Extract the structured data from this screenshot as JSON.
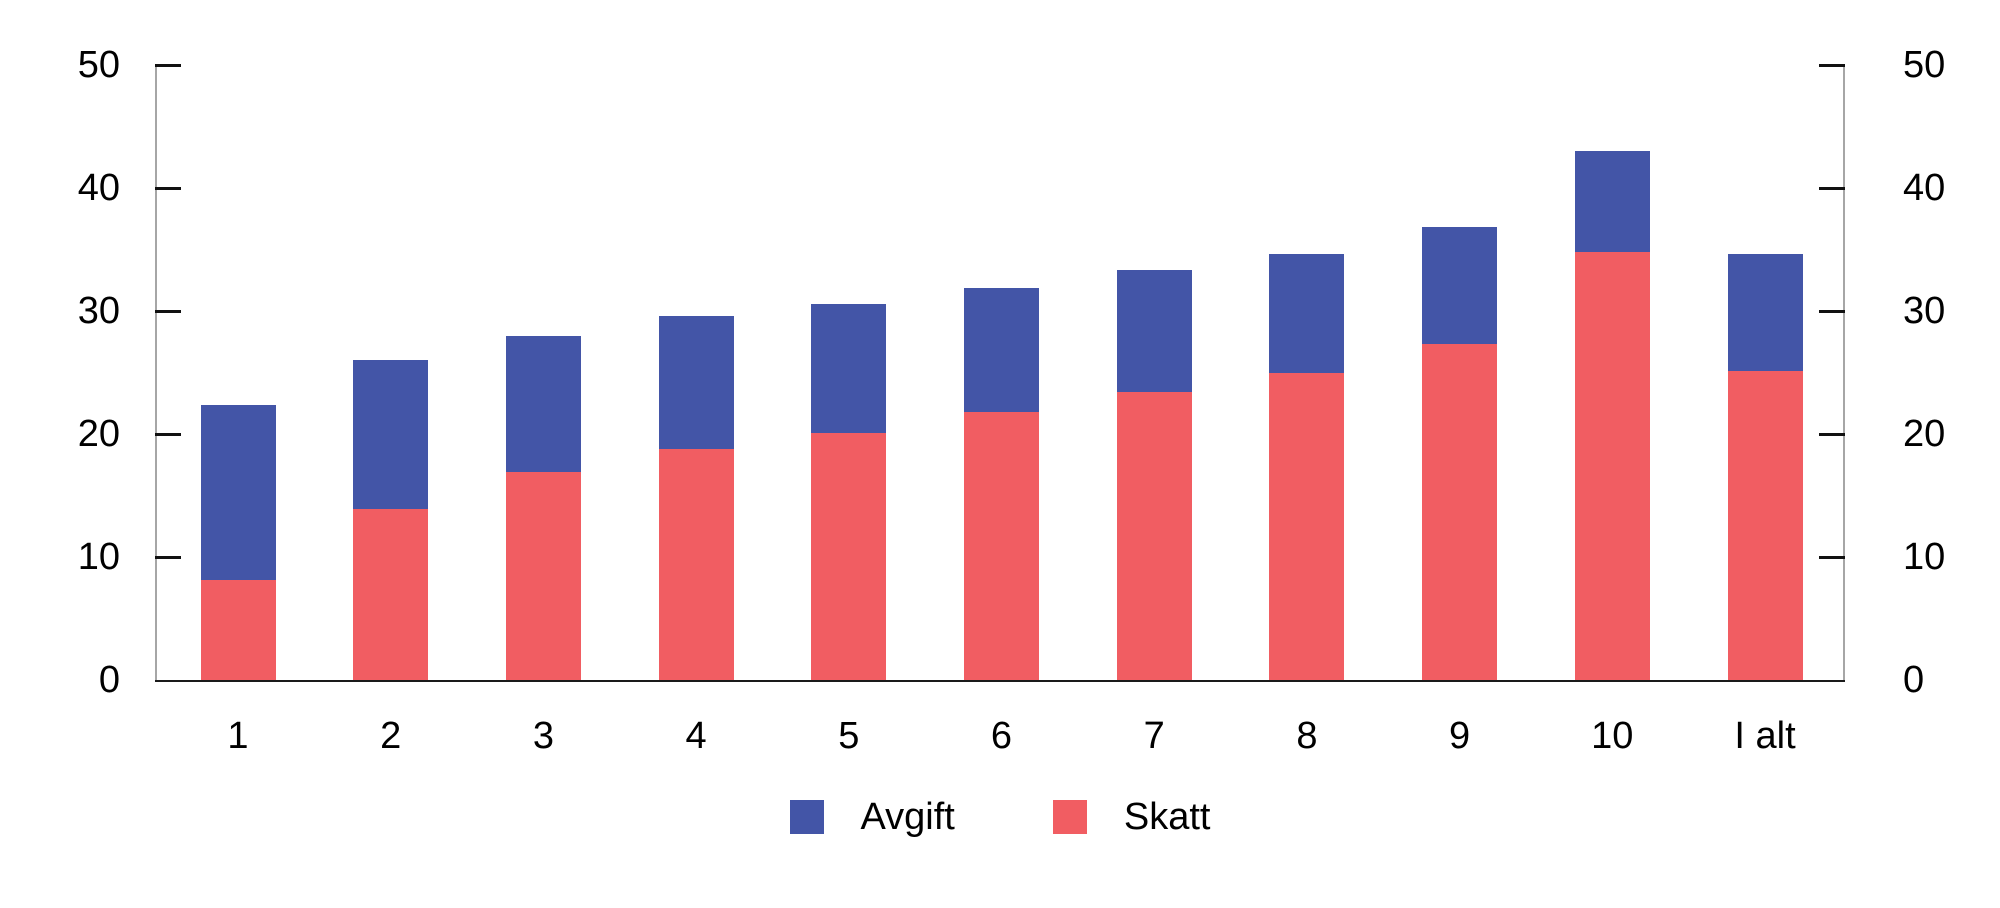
{
  "chart_data": {
    "type": "bar",
    "stacked": true,
    "title": "",
    "xlabel": "",
    "ylabel": "",
    "categories": [
      "1",
      "2",
      "3",
      "4",
      "5",
      "6",
      "7",
      "8",
      "9",
      "10",
      "I alt"
    ],
    "series": [
      {
        "name": "Avgift",
        "color": "#4355A7",
        "values": [
          14.3,
          12.1,
          11.1,
          10.8,
          10.5,
          10.1,
          9.9,
          9.6,
          9.5,
          8.2,
          9.5
        ]
      },
      {
        "name": "Skatt",
        "color": "#F15D62",
        "values": [
          8.1,
          13.9,
          16.9,
          18.8,
          20.1,
          21.8,
          23.4,
          25.0,
          27.3,
          34.8,
          25.1
        ]
      }
    ],
    "stack_bottom_to_top": [
      "Skatt",
      "Avgift"
    ],
    "totals": [
      22.4,
      26.0,
      28.0,
      29.6,
      30.6,
      31.9,
      33.3,
      34.6,
      36.8,
      43.0,
      34.6
    ],
    "ylim": [
      0,
      50
    ],
    "yticks": [
      0,
      10,
      20,
      30,
      40,
      50
    ],
    "y_axis_sides": [
      "left",
      "right"
    ],
    "grid": false,
    "legend_position": "bottom-center",
    "axis_colors": {
      "vertical_axis": "#a6a6a6",
      "bottom_axis": "#1a1a1a",
      "ticks": "#111111"
    }
  },
  "legend": {
    "items": [
      {
        "label": "Avgift",
        "color": "#4355A7"
      },
      {
        "label": "Skatt",
        "color": "#F15D62"
      }
    ]
  }
}
